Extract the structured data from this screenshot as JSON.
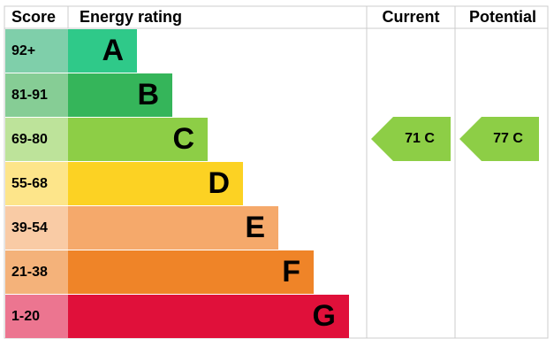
{
  "header": {
    "score": "Score",
    "rating": "Energy rating",
    "current": "Current",
    "potential": "Potential"
  },
  "rows": [
    {
      "score": "92+",
      "letter": "A"
    },
    {
      "score": "81-91",
      "letter": "B"
    },
    {
      "score": "69-80",
      "letter": "C"
    },
    {
      "score": "55-68",
      "letter": "D"
    },
    {
      "score": "39-54",
      "letter": "E"
    },
    {
      "score": "21-38",
      "letter": "F"
    },
    {
      "score": "1-20",
      "letter": "G"
    }
  ],
  "current": "71 C",
  "potential": "77 C"
}
